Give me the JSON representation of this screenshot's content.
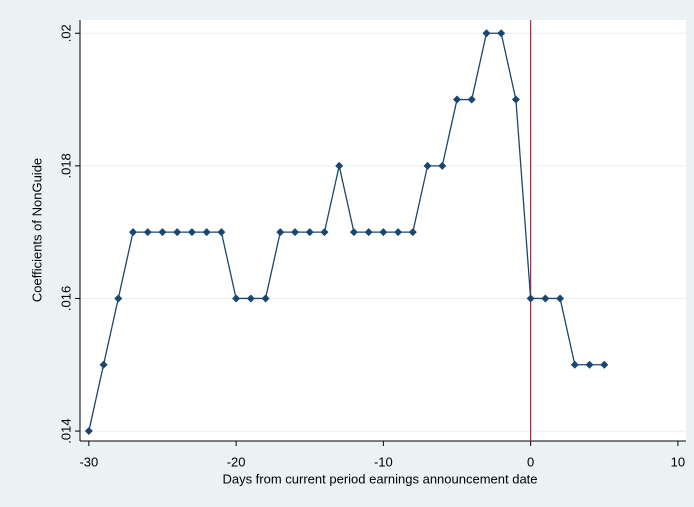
{
  "chart_data": {
    "type": "line",
    "xlabel": "Days from current period earnings announcement date",
    "ylabel": "Coefficients of NonGuide",
    "x": [
      -30,
      -29,
      -28,
      -27,
      -26,
      -25,
      -24,
      -23,
      -22,
      -21,
      -20,
      -19,
      -18,
      -17,
      -16,
      -15,
      -14,
      -13,
      -12,
      -11,
      -10,
      -9,
      -8,
      -7,
      -6,
      -5,
      -4,
      -3,
      -2,
      -1,
      0,
      1,
      2,
      3,
      4,
      5
    ],
    "values": [
      0.014,
      0.015,
      0.016,
      0.017,
      0.017,
      0.017,
      0.017,
      0.017,
      0.017,
      0.017,
      0.016,
      0.016,
      0.016,
      0.017,
      0.017,
      0.017,
      0.017,
      0.018,
      0.017,
      0.017,
      0.017,
      0.017,
      0.017,
      0.018,
      0.018,
      0.019,
      0.019,
      0.02,
      0.02,
      0.019,
      0.016,
      0.016,
      0.016,
      0.015,
      0.015,
      0.015
    ],
    "color": "#1a476f",
    "xlim": [
      -30.6,
      10.55
    ],
    "xticks": [
      -30,
      -20,
      -10,
      0,
      10
    ],
    "ylim": [
      0.01385,
      0.0202
    ],
    "yticks": [
      {
        "value": 0.014,
        "label": ".014"
      },
      {
        "value": 0.016,
        "label": ".016"
      },
      {
        "value": 0.018,
        "label": ".018"
      },
      {
        "value": 0.02,
        "label": ".02"
      }
    ],
    "grid": true,
    "reference_line": {
      "x": 0,
      "color": "#c0203a"
    }
  }
}
